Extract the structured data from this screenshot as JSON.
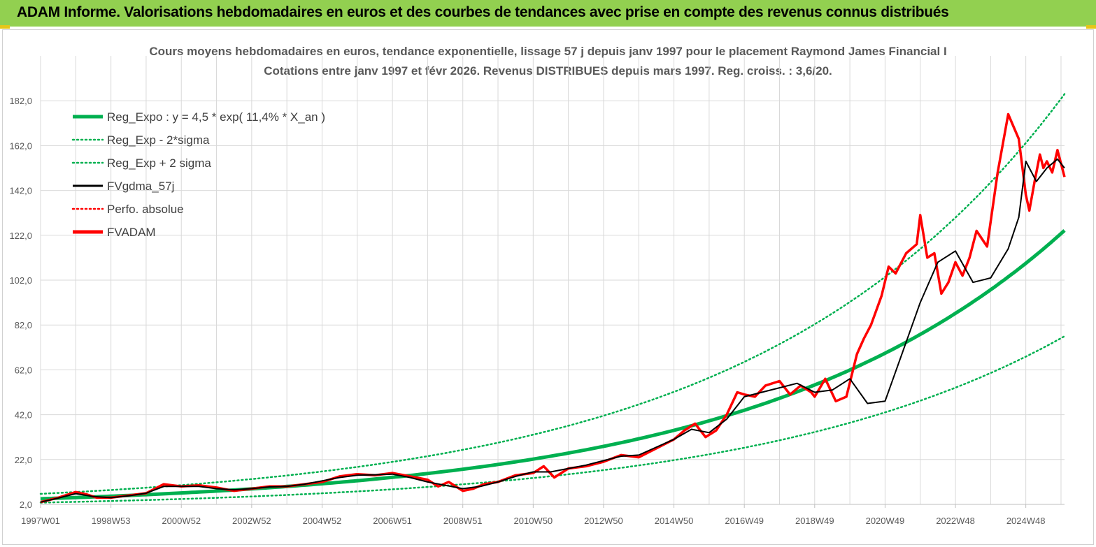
{
  "header": {
    "title": "ADAM Informe. Valorisations hebdomadaires en euros et des courbes de tendances avec prise en compte des revenus connus distribués"
  },
  "chart_data": {
    "type": "line",
    "title_line1": "Cours moyens hebdomadaires en euros, tendance exponentielle, lissage 57 j depuis janv 1997  pour le placement Raymond James Financial I",
    "title_line2": "Cotations entre janv 1997 et févr 2026. Revenus DISTRIBUES depuis mars 1997. Reg. croiss. : 3,6/20.",
    "xlabel": "",
    "ylabel": "",
    "ylim": [
      2,
      202
    ],
    "xlim": [
      1997.0,
      2026.1
    ],
    "y_ticks": [
      "2,0",
      "22,0",
      "42,0",
      "62,0",
      "82,0",
      "102,0",
      "122,0",
      "142,0",
      "162,0",
      "182,0"
    ],
    "x_ticks": [
      {
        "label": "1997W01",
        "x": 1997.0
      },
      {
        "label": "1998W53",
        "x": 1999.0
      },
      {
        "label": "2000W52",
        "x": 2001.0
      },
      {
        "label": "2002W52",
        "x": 2003.0
      },
      {
        "label": "2004W52",
        "x": 2005.0
      },
      {
        "label": "2006W51",
        "x": 2007.0
      },
      {
        "label": "2008W51",
        "x": 2009.0
      },
      {
        "label": "2010W50",
        "x": 2011.0
      },
      {
        "label": "2012W50",
        "x": 2013.0
      },
      {
        "label": "2014W50",
        "x": 2015.0
      },
      {
        "label": "2016W49",
        "x": 2017.0
      },
      {
        "label": "2018W49",
        "x": 2019.0
      },
      {
        "label": "2020W49",
        "x": 2021.0
      },
      {
        "label": "2022W48",
        "x": 2023.0
      },
      {
        "label": "2024W48",
        "x": 2025.0
      }
    ],
    "legend": [
      {
        "name": "Reg_Expo : y = 4,5 * exp( 11,4% *  X_an )",
        "style": "solid-thick",
        "color": "#00b050"
      },
      {
        "name": "Reg_Exp - 2*sigma",
        "style": "dotted",
        "color": "#00b050"
      },
      {
        "name": "Reg_Exp + 2 sigma",
        "style": "dotted",
        "color": "#00b050"
      },
      {
        "name": "FVgdma_57j",
        "style": "solid",
        "color": "#000000"
      },
      {
        "name": "Perfo. absolue",
        "style": "dotted",
        "color": "#ff0000"
      },
      {
        "name": "FVADAM",
        "style": "solid-thick",
        "color": "#ff0000"
      }
    ],
    "regression": {
      "a": 4.5,
      "rate": 0.114,
      "x0": 1997.0,
      "sigma_factor_upper": 1.49,
      "sigma_factor_lower": 0.62
    },
    "series": [
      {
        "name": "FVADAM",
        "color": "#ff0000",
        "x": [
          1997.0,
          1997.5,
          1998.0,
          1998.3,
          1998.6,
          1999.0,
          1999.5,
          2000.0,
          2000.5,
          2001.0,
          2001.5,
          2002.0,
          2002.5,
          2003.0,
          2003.5,
          2004.0,
          2004.5,
          2005.0,
          2005.5,
          2006.0,
          2006.5,
          2007.0,
          2007.5,
          2008.0,
          2008.3,
          2008.6,
          2009.0,
          2009.3,
          2009.6,
          2010.0,
          2010.5,
          2011.0,
          2011.3,
          2011.6,
          2012.0,
          2012.5,
          2013.0,
          2013.5,
          2014.0,
          2014.5,
          2015.0,
          2015.3,
          2015.6,
          2015.9,
          2016.2,
          2016.5,
          2016.8,
          2017.0,
          2017.3,
          2017.6,
          2018.0,
          2018.3,
          2018.6,
          2018.9,
          2019.0,
          2019.3,
          2019.6,
          2019.9,
          2020.2,
          2020.4,
          2020.6,
          2020.9,
          2021.1,
          2021.3,
          2021.6,
          2021.9,
          2022.0,
          2022.2,
          2022.4,
          2022.6,
          2022.8,
          2023.0,
          2023.2,
          2023.4,
          2023.6,
          2023.9,
          2024.2,
          2024.5,
          2024.8,
          2025.0,
          2025.1,
          2025.25,
          2025.4,
          2025.5,
          2025.6,
          2025.75,
          2025.9,
          2026.0,
          2026.1
        ],
        "values": [
          3.0,
          5.0,
          7.5,
          6.5,
          5.0,
          5.0,
          6.0,
          7.0,
          11.0,
          10.0,
          10.5,
          9.5,
          8.0,
          9.0,
          10.0,
          10.0,
          11.0,
          12.0,
          14.5,
          15.5,
          15.0,
          16.0,
          14.5,
          13.0,
          10.0,
          12.0,
          8.0,
          9.0,
          11.0,
          12.0,
          15.0,
          16.0,
          19.0,
          14.0,
          18.0,
          19.0,
          21.0,
          24.0,
          23.0,
          27.0,
          31.0,
          35.0,
          38.0,
          32.0,
          35.0,
          42.0,
          52.0,
          51.0,
          50.0,
          55.0,
          57.0,
          51.0,
          55.0,
          52.0,
          50.0,
          58.0,
          48.0,
          50.0,
          69.0,
          76.0,
          82.0,
          95.0,
          108.0,
          105.0,
          114.0,
          118.0,
          131.0,
          112.0,
          114.0,
          96.0,
          101.0,
          110.0,
          104.0,
          112.0,
          124.0,
          117.0,
          150.0,
          176.0,
          165.0,
          140.0,
          133.0,
          146.0,
          158.0,
          152.0,
          155.0,
          150.0,
          160.0,
          154.0,
          148.0
        ]
      },
      {
        "name": "FVgdma_57j",
        "color": "#000000",
        "x": [
          1997.0,
          1997.5,
          1998.0,
          1998.5,
          1999.0,
          1999.5,
          2000.0,
          2000.5,
          2001.0,
          2001.5,
          2002.0,
          2002.5,
          2003.0,
          2003.5,
          2004.0,
          2004.5,
          2005.0,
          2005.5,
          2006.0,
          2006.5,
          2007.0,
          2007.5,
          2008.0,
          2008.5,
          2009.0,
          2009.5,
          2010.0,
          2010.5,
          2011.0,
          2011.5,
          2012.0,
          2012.5,
          2013.0,
          2013.5,
          2014.0,
          2014.5,
          2015.0,
          2015.5,
          2016.0,
          2016.5,
          2017.0,
          2017.5,
          2018.0,
          2018.5,
          2019.0,
          2019.5,
          2020.0,
          2020.5,
          2021.0,
          2021.5,
          2022.0,
          2022.5,
          2023.0,
          2023.5,
          2024.0,
          2024.5,
          2024.8,
          2025.0,
          2025.3,
          2025.6,
          2025.9,
          2026.1
        ],
        "values": [
          3.0,
          4.8,
          6.8,
          5.5,
          5.0,
          5.8,
          7.0,
          10.0,
          10.0,
          10.0,
          9.0,
          8.5,
          9.0,
          9.8,
          10.0,
          11.0,
          12.5,
          14.0,
          15.0,
          15.2,
          15.5,
          14.0,
          12.0,
          10.5,
          9.0,
          10.0,
          12.0,
          14.5,
          16.5,
          16.5,
          18.0,
          19.5,
          21.5,
          23.5,
          24.0,
          27.5,
          31.0,
          35.5,
          34.0,
          40.0,
          50.0,
          52.0,
          54.0,
          56.0,
          52.0,
          53.0,
          58.0,
          47.0,
          48.0,
          70.0,
          92.0,
          110.0,
          115.0,
          101.0,
          103.0,
          116.0,
          130.0,
          155.0,
          146.0,
          152.0,
          156.0,
          152.0
        ]
      }
    ]
  }
}
